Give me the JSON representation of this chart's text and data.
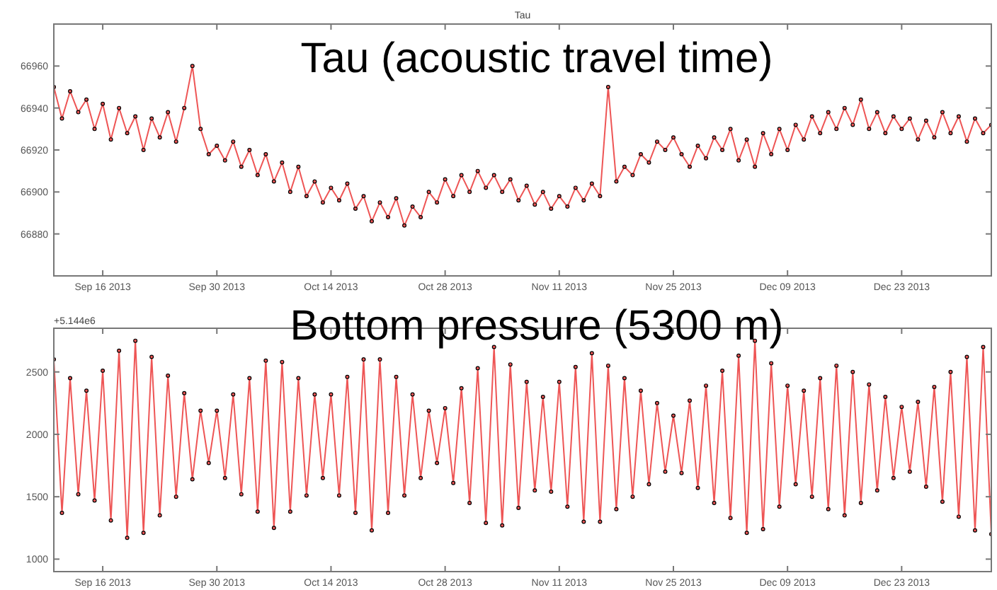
{
  "chart_data": [
    {
      "type": "line",
      "title": "Tau",
      "annotations": [
        "Tau (acoustic travel time)"
      ],
      "marker": "circle",
      "line_style": "solid",
      "grid": false,
      "xlim": [
        "2013-09-10",
        "2014-01-03"
      ],
      "xticks": [
        {
          "value": "2013-09-16",
          "label": "Sep 16 2013"
        },
        {
          "value": "2013-09-30",
          "label": "Sep 30 2013"
        },
        {
          "value": "2013-10-14",
          "label": "Oct 14 2013"
        },
        {
          "value": "2013-10-28",
          "label": "Oct 28 2013"
        },
        {
          "value": "2013-11-11",
          "label": "Nov 11 2013"
        },
        {
          "value": "2013-11-25",
          "label": "Nov 25 2013"
        },
        {
          "value": "2013-12-09",
          "label": "Dec 09 2013"
        },
        {
          "value": "2013-12-23",
          "label": "Dec 23 2013"
        }
      ],
      "ylim": [
        66860,
        66980
      ],
      "yticks": [
        66880,
        66900,
        66920,
        66940,
        66960
      ],
      "x": [
        "2013-09-10",
        "2013-09-11",
        "2013-09-12",
        "2013-09-13",
        "2013-09-14",
        "2013-09-15",
        "2013-09-16",
        "2013-09-17",
        "2013-09-18",
        "2013-09-19",
        "2013-09-20",
        "2013-09-21",
        "2013-09-22",
        "2013-09-23",
        "2013-09-24",
        "2013-09-25",
        "2013-09-26",
        "2013-09-27",
        "2013-09-28",
        "2013-09-29",
        "2013-09-30",
        "2013-10-01",
        "2013-10-02",
        "2013-10-03",
        "2013-10-04",
        "2013-10-05",
        "2013-10-06",
        "2013-10-07",
        "2013-10-08",
        "2013-10-09",
        "2013-10-10",
        "2013-10-11",
        "2013-10-12",
        "2013-10-13",
        "2013-10-14",
        "2013-10-15",
        "2013-10-16",
        "2013-10-17",
        "2013-10-18",
        "2013-10-19",
        "2013-10-20",
        "2013-10-21",
        "2013-10-22",
        "2013-10-23",
        "2013-10-24",
        "2013-10-25",
        "2013-10-26",
        "2013-10-27",
        "2013-10-28",
        "2013-10-29",
        "2013-10-30",
        "2013-10-31",
        "2013-11-01",
        "2013-11-02",
        "2013-11-03",
        "2013-11-04",
        "2013-11-05",
        "2013-11-06",
        "2013-11-07",
        "2013-11-08",
        "2013-11-09",
        "2013-11-10",
        "2013-11-11",
        "2013-11-12",
        "2013-11-13",
        "2013-11-14",
        "2013-11-15",
        "2013-11-16",
        "2013-11-17",
        "2013-11-18",
        "2013-11-19",
        "2013-11-20",
        "2013-11-21",
        "2013-11-22",
        "2013-11-23",
        "2013-11-24",
        "2013-11-25",
        "2013-11-26",
        "2013-11-27",
        "2013-11-28",
        "2013-11-29",
        "2013-11-30",
        "2013-12-01",
        "2013-12-02",
        "2013-12-03",
        "2013-12-04",
        "2013-12-05",
        "2013-12-06",
        "2013-12-07",
        "2013-12-08",
        "2013-12-09",
        "2013-12-10",
        "2013-12-11",
        "2013-12-12",
        "2013-12-13",
        "2013-12-14",
        "2013-12-15",
        "2013-12-16",
        "2013-12-17",
        "2013-12-18",
        "2013-12-19",
        "2013-12-20",
        "2013-12-21",
        "2013-12-22",
        "2013-12-23",
        "2013-12-24",
        "2013-12-25",
        "2013-12-26",
        "2013-12-27",
        "2013-12-28",
        "2013-12-29",
        "2013-12-30",
        "2013-12-31",
        "2014-01-01",
        "2014-01-02",
        "2014-01-03"
      ],
      "series": [
        {
          "color": "#ee5555",
          "values": [
            66950,
            66935,
            66948,
            66938,
            66944,
            66930,
            66942,
            66925,
            66940,
            66928,
            66936,
            66920,
            66935,
            66926,
            66938,
            66924,
            66940,
            66960,
            66930,
            66918,
            66922,
            66915,
            66924,
            66912,
            66920,
            66908,
            66918,
            66905,
            66914,
            66900,
            66912,
            66898,
            66905,
            66895,
            66902,
            66896,
            66904,
            66892,
            66898,
            66886,
            66895,
            66888,
            66897,
            66884,
            66893,
            66888,
            66900,
            66895,
            66906,
            66898,
            66908,
            66900,
            66910,
            66902,
            66908,
            66900,
            66906,
            66896,
            66903,
            66894,
            66900,
            66892,
            66898,
            66893,
            66902,
            66896,
            66904,
            66898,
            66950,
            66905,
            66912,
            66908,
            66918,
            66914,
            66924,
            66920,
            66926,
            66918,
            66912,
            66922,
            66916,
            66926,
            66920,
            66930,
            66915,
            66925,
            66912,
            66928,
            66918,
            66930,
            66920,
            66932,
            66925,
            66936,
            66928,
            66938,
            66930,
            66940,
            66932,
            66944,
            66930,
            66938,
            66928,
            66936,
            66930,
            66935,
            66925,
            66934,
            66926,
            66938,
            66928,
            66936,
            66924,
            66935,
            66928,
            66932
          ]
        }
      ]
    },
    {
      "type": "line",
      "ylabel": "+5.144e6",
      "annotations": [
        "Bottom pressure (5300 m)"
      ],
      "marker": "circle",
      "line_style": "solid",
      "grid": false,
      "xlim": [
        "2013-09-10",
        "2014-01-03"
      ],
      "xticks": [
        {
          "value": "2013-09-16",
          "label": "Sep 16 2013"
        },
        {
          "value": "2013-09-30",
          "label": "Sep 30 2013"
        },
        {
          "value": "2013-10-14",
          "label": "Oct 14 2013"
        },
        {
          "value": "2013-10-28",
          "label": "Oct 28 2013"
        },
        {
          "value": "2013-11-11",
          "label": "Nov 11 2013"
        },
        {
          "value": "2013-11-25",
          "label": "Nov 25 2013"
        },
        {
          "value": "2013-12-09",
          "label": "Dec 09 2013"
        },
        {
          "value": "2013-12-23",
          "label": "Dec 23 2013"
        }
      ],
      "ylim": [
        900,
        2850
      ],
      "yticks": [
        1000,
        1500,
        2000,
        2500
      ],
      "x": [
        "2013-09-10",
        "2013-09-11",
        "2013-09-12",
        "2013-09-13",
        "2013-09-14",
        "2013-09-15",
        "2013-09-16",
        "2013-09-17",
        "2013-09-18",
        "2013-09-19",
        "2013-09-20",
        "2013-09-21",
        "2013-09-22",
        "2013-09-23",
        "2013-09-24",
        "2013-09-25",
        "2013-09-26",
        "2013-09-27",
        "2013-09-28",
        "2013-09-29",
        "2013-09-30",
        "2013-10-01",
        "2013-10-02",
        "2013-10-03",
        "2013-10-04",
        "2013-10-05",
        "2013-10-06",
        "2013-10-07",
        "2013-10-08",
        "2013-10-09",
        "2013-10-10",
        "2013-10-11",
        "2013-10-12",
        "2013-10-13",
        "2013-10-14",
        "2013-10-15",
        "2013-10-16",
        "2013-10-17",
        "2013-10-18",
        "2013-10-19",
        "2013-10-20",
        "2013-10-21",
        "2013-10-22",
        "2013-10-23",
        "2013-10-24",
        "2013-10-25",
        "2013-10-26",
        "2013-10-27",
        "2013-10-28",
        "2013-10-29",
        "2013-10-30",
        "2013-10-31",
        "2013-11-01",
        "2013-11-02",
        "2013-11-03",
        "2013-11-04",
        "2013-11-05",
        "2013-11-06",
        "2013-11-07",
        "2013-11-08",
        "2013-11-09",
        "2013-11-10",
        "2013-11-11",
        "2013-11-12",
        "2013-11-13",
        "2013-11-14",
        "2013-11-15",
        "2013-11-16",
        "2013-11-17",
        "2013-11-18",
        "2013-11-19",
        "2013-11-20",
        "2013-11-21",
        "2013-11-22",
        "2013-11-23",
        "2013-11-24",
        "2013-11-25",
        "2013-11-26",
        "2013-11-27",
        "2013-11-28",
        "2013-11-29",
        "2013-11-30",
        "2013-12-01",
        "2013-12-02",
        "2013-12-03",
        "2013-12-04",
        "2013-12-05",
        "2013-12-06",
        "2013-12-07",
        "2013-12-08",
        "2013-12-09",
        "2013-12-10",
        "2013-12-11",
        "2013-12-12",
        "2013-12-13",
        "2013-12-14",
        "2013-12-15",
        "2013-12-16",
        "2013-12-17",
        "2013-12-18",
        "2013-12-19",
        "2013-12-20",
        "2013-12-21",
        "2013-12-22",
        "2013-12-23",
        "2013-12-24",
        "2013-12-25",
        "2013-12-26",
        "2013-12-27",
        "2013-12-28",
        "2013-12-29",
        "2013-12-30",
        "2013-12-31",
        "2014-01-01",
        "2014-01-02",
        "2014-01-03"
      ],
      "series": [
        {
          "color": "#ee5555",
          "values": [
            2600,
            1370,
            2450,
            1520,
            2350,
            1470,
            2510,
            1310,
            2670,
            1170,
            2750,
            1210,
            2620,
            1350,
            2470,
            1500,
            2330,
            1640,
            2190,
            1770,
            2190,
            1650,
            2320,
            1520,
            2450,
            1380,
            2590,
            1250,
            2580,
            1380,
            2450,
            1510,
            2320,
            1650,
            2320,
            1510,
            2460,
            1370,
            2600,
            1230,
            2600,
            1370,
            2460,
            1510,
            2320,
            1650,
            2190,
            1770,
            2210,
            1610,
            2370,
            1450,
            2530,
            1290,
            2700,
            1270,
            2560,
            1410,
            2420,
            1550,
            2300,
            1540,
            2420,
            1420,
            2540,
            1300,
            2650,
            1300,
            2550,
            1400,
            2450,
            1500,
            2350,
            1600,
            2250,
            1700,
            2150,
            1690,
            2270,
            1570,
            2390,
            1450,
            2510,
            1330,
            2630,
            1210,
            2750,
            1240,
            2570,
            1420,
            2390,
            1600,
            2350,
            1500,
            2450,
            1400,
            2550,
            1350,
            2500,
            1450,
            2400,
            1550,
            2300,
            1650,
            2220,
            1700,
            2260,
            1580,
            2380,
            1460,
            2500,
            1340,
            2620,
            1230,
            2700,
            1200
          ]
        }
      ]
    }
  ]
}
